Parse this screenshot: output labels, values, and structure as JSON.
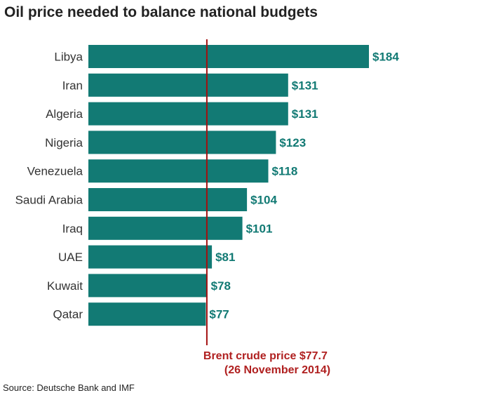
{
  "chart_data": {
    "type": "bar",
    "orientation": "horizontal",
    "title": "Oil price needed to balance national budgets",
    "categories": [
      "Libya",
      "Iran",
      "Algeria",
      "Nigeria",
      "Venezuela",
      "Saudi Arabia",
      "Iraq",
      "UAE",
      "Kuwait",
      "Qatar"
    ],
    "values": [
      184,
      131,
      131,
      123,
      118,
      104,
      101,
      81,
      78,
      77
    ],
    "value_labels": [
      "$184",
      "$131",
      "$131",
      "$123",
      "$118",
      "$104",
      "$101",
      "$81",
      "$78",
      "$77"
    ],
    "reference_line": {
      "value": 77.7,
      "label_line1": "Brent crude price $77.7",
      "label_line2": "(26 November 2014)"
    },
    "xlabel": "",
    "ylabel": "",
    "xlim": [
      0,
      184
    ],
    "grid": false,
    "legend": "none",
    "source": "Source: Deutsche Bank and IMF"
  },
  "colors": {
    "bar": "#127a74",
    "value_label": "#127a74",
    "reference_line": "#a30f0f",
    "reference_label": "#b02020"
  }
}
